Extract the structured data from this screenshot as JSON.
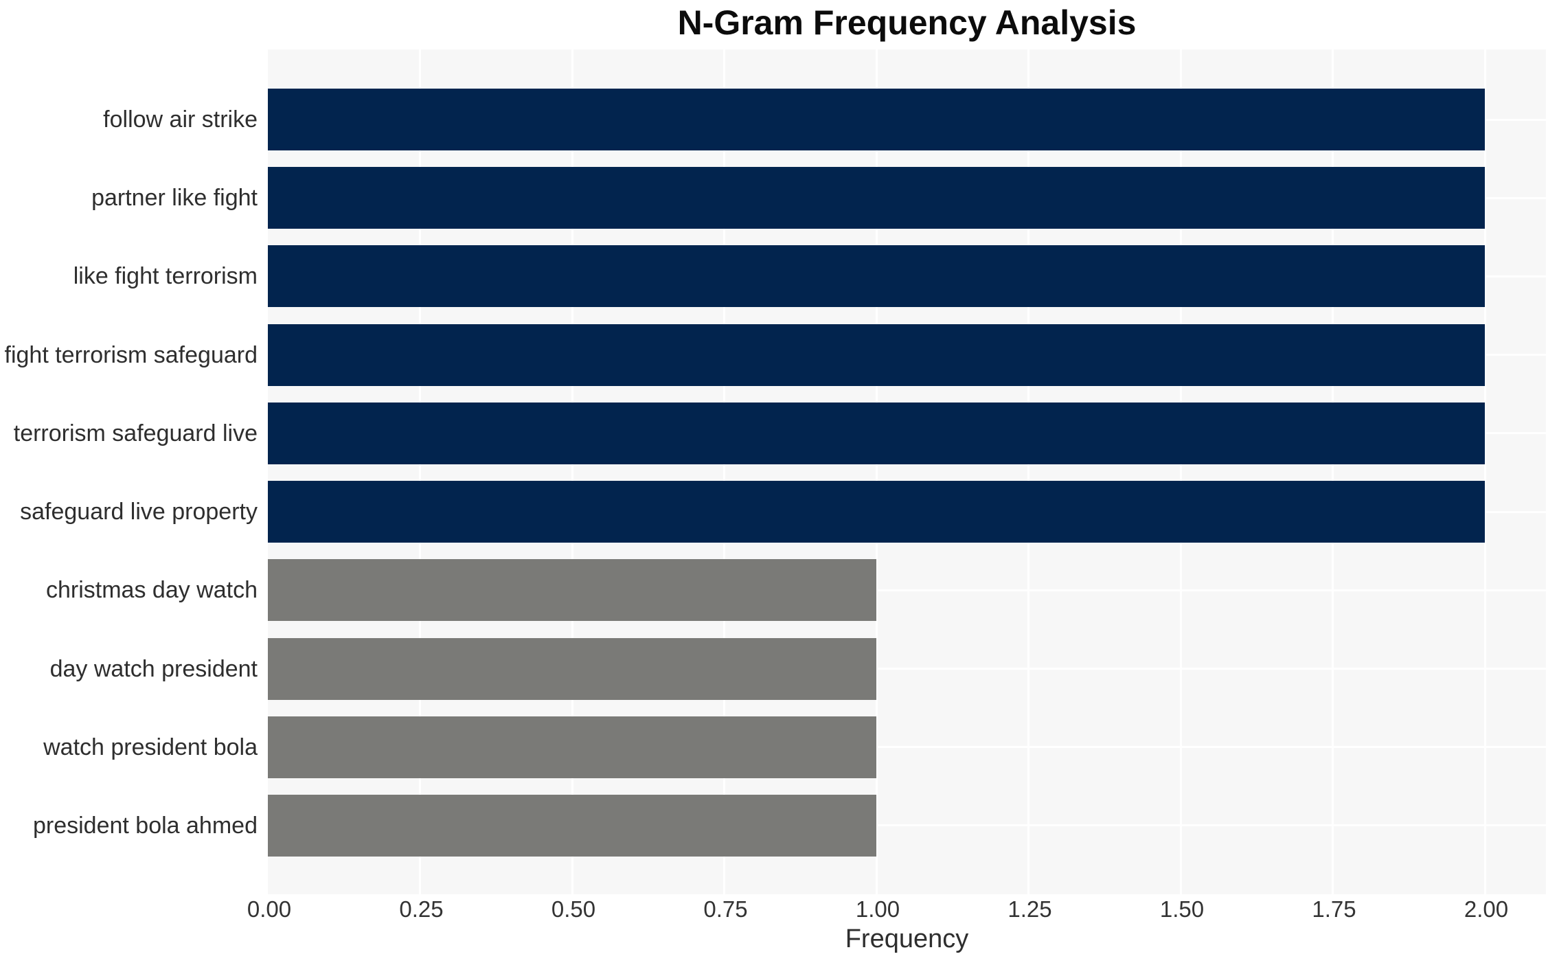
{
  "chart_data": {
    "type": "bar",
    "orientation": "horizontal",
    "title": "N-Gram Frequency Analysis",
    "xlabel": "Frequency",
    "ylabel": "",
    "categories": [
      "follow air strike",
      "partner like fight",
      "like fight terrorism",
      "fight terrorism safeguard",
      "terrorism safeguard live",
      "safeguard live property",
      "christmas day watch",
      "day watch president",
      "watch president bola",
      "president bola ahmed"
    ],
    "values": [
      2,
      2,
      2,
      2,
      2,
      2,
      1,
      1,
      1,
      1
    ],
    "bar_colors": [
      "#02244E",
      "#02244E",
      "#02244E",
      "#02244E",
      "#02244E",
      "#02244E",
      "#7A7A77",
      "#7A7A77",
      "#7A7A77",
      "#7A7A77"
    ],
    "xtick_labels": [
      "0.00",
      "0.25",
      "0.50",
      "0.75",
      "1.00",
      "1.25",
      "1.50",
      "1.75",
      "2.00"
    ],
    "xtick_values": [
      0,
      0.25,
      0.5,
      0.75,
      1.0,
      1.25,
      1.5,
      1.75,
      2.0
    ],
    "xlim": [
      0,
      2.1
    ],
    "grid": true,
    "legend": "none",
    "colors": {
      "bar_high": "#02244E",
      "bar_low": "#7A7A77",
      "plot_background": "#F7F7F7",
      "grid_line": "#FFFFFF",
      "figure_background": "#FFFFFF",
      "title_text": "#0C0C0C",
      "tick_text": "#333333",
      "label_text": "#2E2E2E"
    }
  }
}
